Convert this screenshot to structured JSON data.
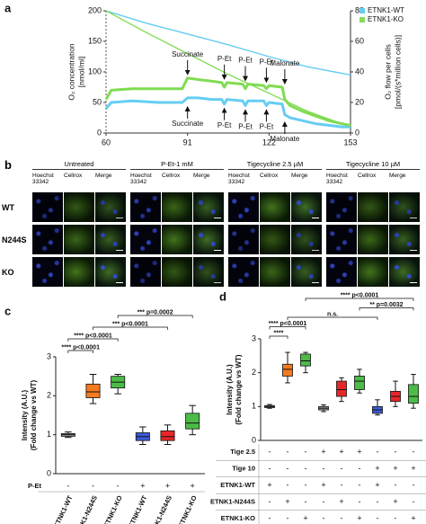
{
  "chart_data": [
    {
      "type": "line",
      "panel": "a",
      "ylabel": [
        "O₂ concentration",
        "[nmol/ml]"
      ],
      "y2label": [
        "O₂ flow per cells",
        "[pmol/(s*million cells)]"
      ],
      "xlim": [
        60,
        153
      ],
      "xticks": [
        60,
        91,
        122,
        153
      ],
      "ylim": [
        0,
        200
      ],
      "yticks": [
        0,
        50,
        100,
        150,
        200
      ],
      "y2lim": [
        0,
        80
      ],
      "y2ticks": [
        0,
        20,
        40,
        60,
        80
      ],
      "legend": "top-right",
      "series": [
        {
          "name": "ETNK1-WT",
          "color": "#66cdf2",
          "x": [
            60,
            75,
            91,
            106,
            122,
            137,
            153
          ],
          "values": [
            200,
            180,
            162,
            145,
            125,
            108,
            95
          ]
        },
        {
          "name": "ETNK1-KO",
          "color": "#86dc5a",
          "x": [
            60,
            75,
            91,
            106,
            122,
            137,
            153
          ],
          "values": [
            200,
            165,
            130,
            97,
            65,
            35,
            10
          ]
        },
        {
          "color": "#66cdf2",
          "axis": "y2",
          "x": [
            60,
            62,
            70,
            80,
            89,
            91,
            95,
            100,
            104,
            105,
            106,
            112,
            113,
            114,
            120,
            121,
            122,
            127,
            128,
            130,
            135,
            140,
            145,
            150,
            153
          ],
          "values": [
            16,
            20,
            21,
            20,
            20,
            23,
            23,
            22,
            22,
            19,
            22,
            21,
            18,
            21,
            21,
            18,
            20,
            19,
            12,
            10,
            8,
            6,
            5,
            4,
            4
          ]
        },
        {
          "color": "#7fdc50",
          "axis": "y2",
          "x": [
            60,
            62,
            70,
            80,
            89,
            91,
            95,
            100,
            104,
            105,
            106,
            112,
            113,
            114,
            120,
            121,
            122,
            127,
            128,
            130,
            135,
            140,
            145,
            150,
            153
          ],
          "values": [
            22,
            28,
            29,
            29,
            29,
            36,
            35,
            34,
            33,
            30,
            33,
            32,
            29,
            32,
            31,
            29,
            31,
            30,
            22,
            18,
            14,
            11,
            8,
            6,
            5
          ]
        }
      ],
      "annotations_top": [
        {
          "text": "Succinate",
          "x": 91
        },
        {
          "text": "P-Et",
          "x": 105
        },
        {
          "text": "P-Et",
          "x": 113
        },
        {
          "text": "P-Et",
          "x": 121
        },
        {
          "text": "Malonate",
          "x": 128
        }
      ],
      "annotations_bottom": [
        {
          "text": "Succinate",
          "x": 91
        },
        {
          "text": "P-Et",
          "x": 105
        },
        {
          "text": "P-Et",
          "x": 113
        },
        {
          "text": "P-Et",
          "x": 121
        },
        {
          "text": "Malonate",
          "x": 128
        }
      ]
    },
    {
      "type": "box",
      "panel": "c",
      "ylabel": [
        "Intensity (A.U.)",
        "(Fold change vs WT)"
      ],
      "ylim": [
        0,
        3
      ],
      "yticks": [
        0,
        1,
        2,
        3
      ],
      "categories": [
        "ETNK1-WT",
        "ETNK1-N244S",
        "ETNK1-KO",
        "ETNK1-WT",
        "ETNK1-N244S",
        "ETNK1-KO"
      ],
      "boxes": [
        {
          "min": 0.93,
          "q1": 0.96,
          "median": 1.0,
          "q3": 1.03,
          "max": 1.07,
          "color": "#9a9a9a"
        },
        {
          "min": 1.8,
          "q1": 1.95,
          "median": 2.1,
          "q3": 2.3,
          "max": 2.55,
          "color": "#f47a20"
        },
        {
          "min": 2.05,
          "q1": 2.2,
          "median": 2.35,
          "q3": 2.5,
          "max": 2.55,
          "color": "#4cbb47"
        },
        {
          "min": 0.75,
          "q1": 0.85,
          "median": 0.95,
          "q3": 1.05,
          "max": 1.2,
          "color": "#3c5bd6"
        },
        {
          "min": 0.75,
          "q1": 0.85,
          "median": 0.95,
          "q3": 1.1,
          "max": 1.25,
          "color": "#e8262a"
        },
        {
          "min": 1.0,
          "q1": 1.15,
          "median": 1.3,
          "q3": 1.55,
          "max": 1.75,
          "color": "#4cbb47"
        }
      ],
      "table_rows": [
        {
          "label": "P-Et",
          "cells": [
            "-",
            "-",
            "-",
            "+",
            "+",
            "+"
          ]
        }
      ],
      "brackets": [
        {
          "label": "**** p<0.0001",
          "pair": [
            0,
            1
          ]
        },
        {
          "label": "**** p<0.0001",
          "pair": [
            0,
            2
          ]
        },
        {
          "label": "*** p<0.0001",
          "pair": [
            1,
            4
          ]
        },
        {
          "label": "*** p=0.0002",
          "pair": [
            2,
            5
          ]
        }
      ]
    },
    {
      "type": "box",
      "panel": "d",
      "ylabel": [
        "Intensity (A.U.)",
        "(Fold change vs WT)"
      ],
      "ylim": [
        0,
        3
      ],
      "yticks": [
        0,
        1,
        2,
        3
      ],
      "boxes": [
        {
          "min": 0.95,
          "q1": 0.97,
          "median": 1.0,
          "q3": 1.03,
          "max": 1.06,
          "color": "#9a9a9a"
        },
        {
          "min": 1.7,
          "q1": 1.9,
          "median": 2.1,
          "q3": 2.25,
          "max": 2.6,
          "color": "#f47a20"
        },
        {
          "min": 2.0,
          "q1": 2.2,
          "median": 2.35,
          "q3": 2.55,
          "max": 2.6,
          "color": "#4cbb47"
        },
        {
          "min": 0.85,
          "q1": 0.9,
          "median": 0.95,
          "q3": 1.0,
          "max": 1.05,
          "color": "#9a9a9a"
        },
        {
          "min": 1.15,
          "q1": 1.3,
          "median": 1.5,
          "q3": 1.75,
          "max": 1.85,
          "color": "#e8262a"
        },
        {
          "min": 1.4,
          "q1": 1.5,
          "median": 1.75,
          "q3": 1.9,
          "max": 2.1,
          "color": "#4cbb47"
        },
        {
          "min": 0.75,
          "q1": 0.8,
          "median": 0.9,
          "q3": 1.0,
          "max": 1.2,
          "color": "#3c5bd6"
        },
        {
          "min": 1.0,
          "q1": 1.15,
          "median": 1.3,
          "q3": 1.45,
          "max": 1.75,
          "color": "#e8262a"
        },
        {
          "min": 0.95,
          "q1": 1.1,
          "median": 1.3,
          "q3": 1.65,
          "max": 1.95,
          "color": "#4cbb47"
        }
      ],
      "table_rows": [
        {
          "label": "Tige 2.5",
          "cells": [
            "-",
            "-",
            "-",
            "+",
            "+",
            "+",
            "-",
            "-",
            "-"
          ]
        },
        {
          "label": "Tige 10",
          "cells": [
            "-",
            "-",
            "-",
            "-",
            "-",
            "-",
            "+",
            "+",
            "+"
          ]
        },
        {
          "label": "ETNK1-WT",
          "cells": [
            "+",
            "-",
            "-",
            "+",
            "-",
            "-",
            "+",
            "-",
            "-"
          ]
        },
        {
          "label": "ETNK1-N244S",
          "cells": [
            "-",
            "+",
            "-",
            "-",
            "+",
            "-",
            "-",
            "+",
            "-"
          ]
        },
        {
          "label": "ETNK1-KO",
          "cells": [
            "-",
            "-",
            "+",
            "-",
            "-",
            "+",
            "-",
            "-",
            "+"
          ]
        }
      ],
      "brackets": [
        {
          "label": "****",
          "pair": [
            0,
            1
          ]
        },
        {
          "label": "**** p<0.0001",
          "pair": [
            0,
            2
          ]
        },
        {
          "label": "n.s.",
          "pair": [
            1,
            6
          ]
        },
        {
          "label": "** p=0.0032",
          "pair": [
            5,
            8
          ]
        },
        {
          "label": "**** p<0.0001",
          "pair": [
            2,
            8
          ]
        }
      ]
    }
  ],
  "figure_b": {
    "panel": "b",
    "groups": [
      "Untreated",
      "P-Et-1 mM",
      "Tigecycline 2.5 µM",
      "Tigecycline 10 µM"
    ],
    "channels": [
      "Hoechst 33342",
      "Cellrox",
      "Merge"
    ],
    "rows": [
      "WT",
      "N244S",
      "KO"
    ]
  }
}
